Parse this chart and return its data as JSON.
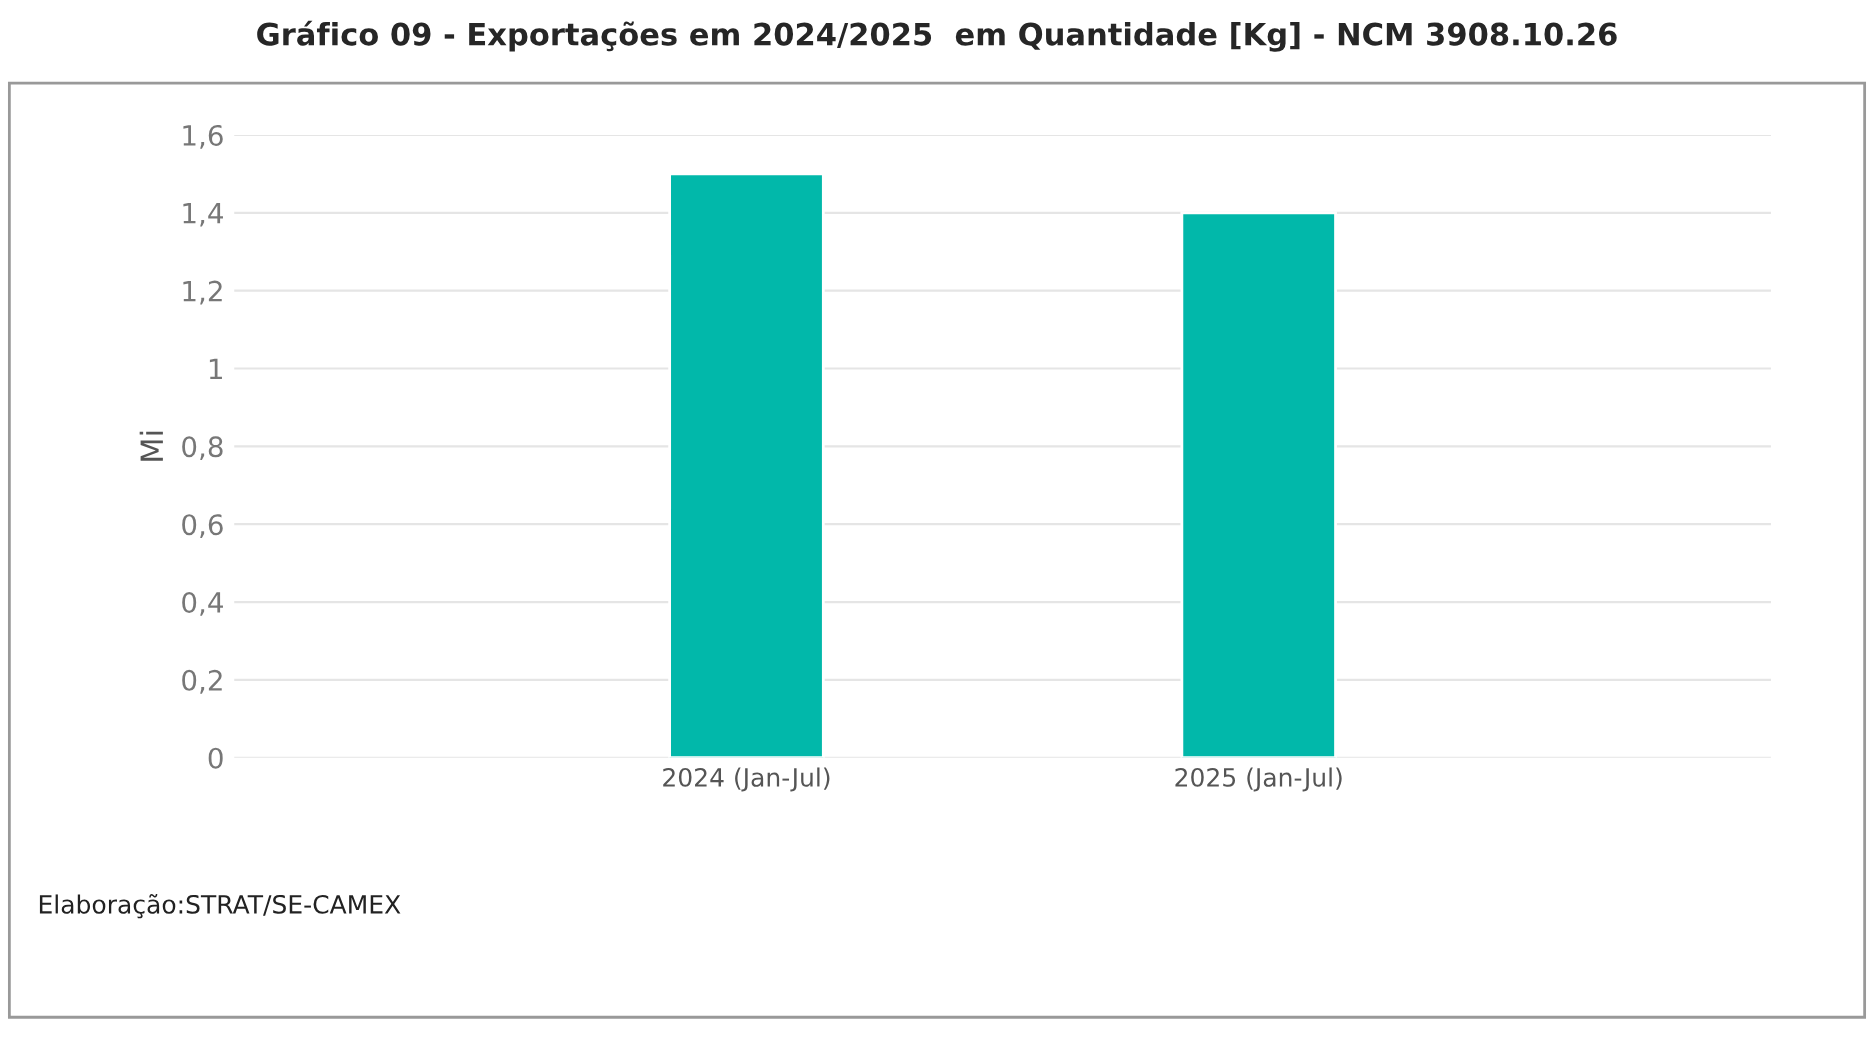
{
  "chart_data": {
    "type": "bar",
    "title": "Gráfico 09 - Exportações em 2024/2025  em Quantidade [Kg] - NCM 3908.10.26",
    "ylabel": "Mi",
    "categories": [
      "2024 (Jan-Jul)",
      "2025 (Jan-Jul)"
    ],
    "values": [
      1.5,
      1.4
    ],
    "color": "#01b8aa",
    "ylim": [
      0,
      1.6
    ],
    "yticks": [
      {
        "value": 0,
        "label": "0"
      },
      {
        "value": 0.2,
        "label": "0,2"
      },
      {
        "value": 0.4,
        "label": "0,4"
      },
      {
        "value": 0.6,
        "label": "0,6"
      },
      {
        "value": 0.8,
        "label": "0,8"
      },
      {
        "value": 1,
        "label": "1"
      },
      {
        "value": 1.2,
        "label": "1,2"
      },
      {
        "value": 1.4,
        "label": "1,4"
      },
      {
        "value": 1.6,
        "label": "1,6"
      }
    ],
    "grid": "y",
    "annotations": [
      "Elaboração:STRAT/SE-CAMEX"
    ]
  }
}
